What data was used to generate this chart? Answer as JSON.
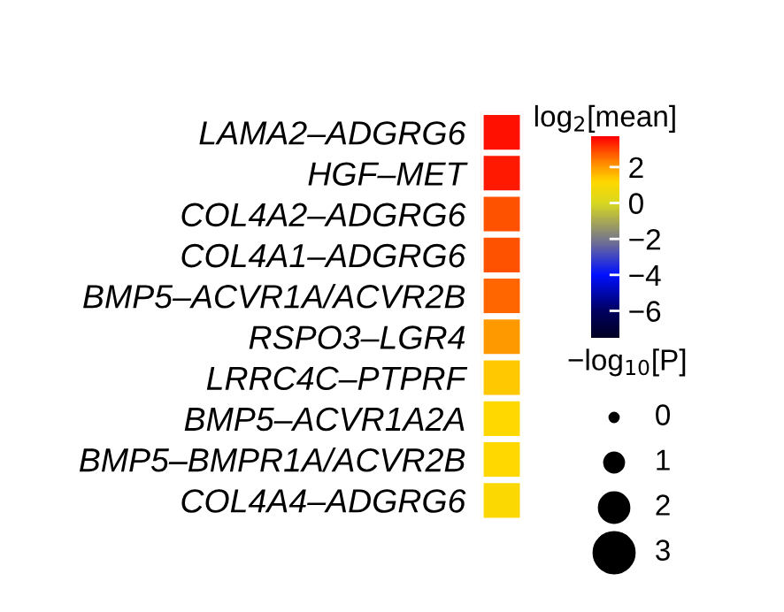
{
  "chart_data": {
    "type": "heatmap",
    "categories": [
      null
    ],
    "y_categories": [
      "LAMA2–ADGRG6",
      "HGF–MET",
      "COL4A2–ADGRG6",
      "COL4A1–ADGRG6",
      "BMP5–ACVR1A/ACVR2B",
      "RSPO3–LGR4",
      "LRRC4C–PTPRF",
      "BMP5–ACVR1A2A",
      "BMP5–BMPR1A/ACVR2B",
      "COL4A4–ADGRG6"
    ],
    "cells": [
      [
        3.5
      ],
      [
        3.4
      ],
      [
        2.8
      ],
      [
        2.8
      ],
      [
        2.6
      ],
      [
        2.0
      ],
      [
        1.4
      ],
      [
        1.2
      ],
      [
        1.2
      ],
      [
        1.1
      ]
    ],
    "clim": [
      -7.5,
      3.7
    ],
    "cticks": [
      {
        "value": 2,
        "label": "2"
      },
      {
        "value": 0,
        "label": "0"
      },
      {
        "value": -2,
        "label": "−2"
      },
      {
        "value": -4,
        "label": "−4"
      },
      {
        "value": -6,
        "label": "−6"
      }
    ],
    "clabel": "log$_{2}$[mean]",
    "annotations": [
      "−log$_{10}$[P]",
      "0",
      "1",
      "2",
      "3"
    ]
  }
}
